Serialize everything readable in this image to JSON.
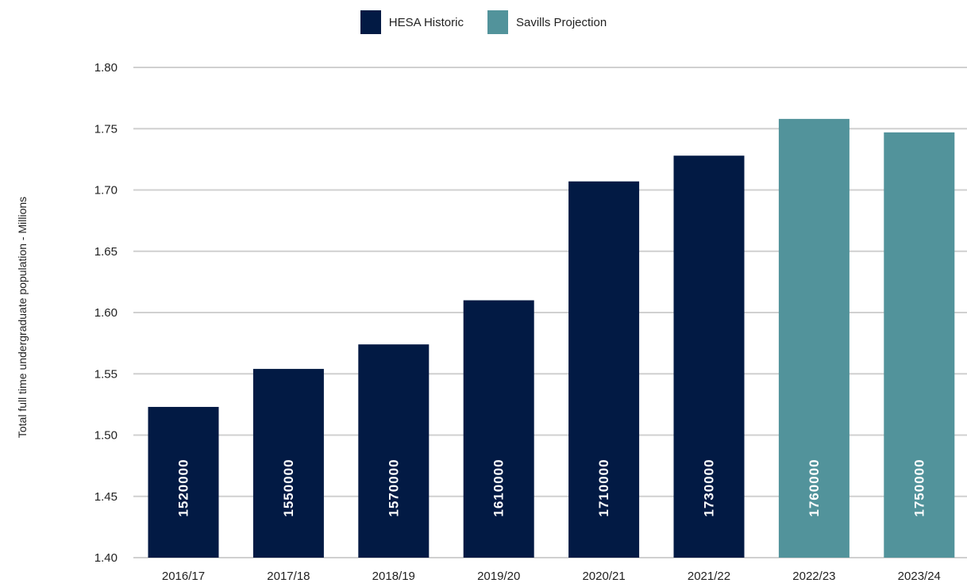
{
  "legend": {
    "items": [
      {
        "label": "HESA Historic",
        "color": "#021a44"
      },
      {
        "label": "Savills Projection",
        "color": "#52939b"
      }
    ]
  },
  "chart_data": {
    "type": "bar",
    "title": "",
    "xlabel": "",
    "ylabel": "Total full time undergraduate population  - Millions",
    "ylim": [
      1.4,
      1.8
    ],
    "yticks": [
      "1.40",
      "1.45",
      "1.50",
      "1.55",
      "1.60",
      "1.65",
      "1.70",
      "1.75",
      "1.80"
    ],
    "grid": true,
    "legend_position": "top-center",
    "categories": [
      "2016/17",
      "2017/18",
      "2018/19",
      "2019/20",
      "2020/21",
      "2021/22",
      "2022/23",
      "2023/24"
    ],
    "values": [
      1.523,
      1.554,
      1.574,
      1.61,
      1.707,
      1.728,
      1.758,
      1.747
    ],
    "data_labels": [
      "1520000",
      "1550000",
      "1570000",
      "1610000",
      "1710000",
      "1730000",
      "1760000",
      "1750000"
    ],
    "series_assignment": [
      "HESA Historic",
      "HESA Historic",
      "HESA Historic",
      "HESA Historic",
      "HESA Historic",
      "HESA Historic",
      "Savills Projection",
      "Savills Projection"
    ],
    "series_colors": {
      "HESA Historic": "#021a44",
      "Savills Projection": "#52939b"
    }
  }
}
